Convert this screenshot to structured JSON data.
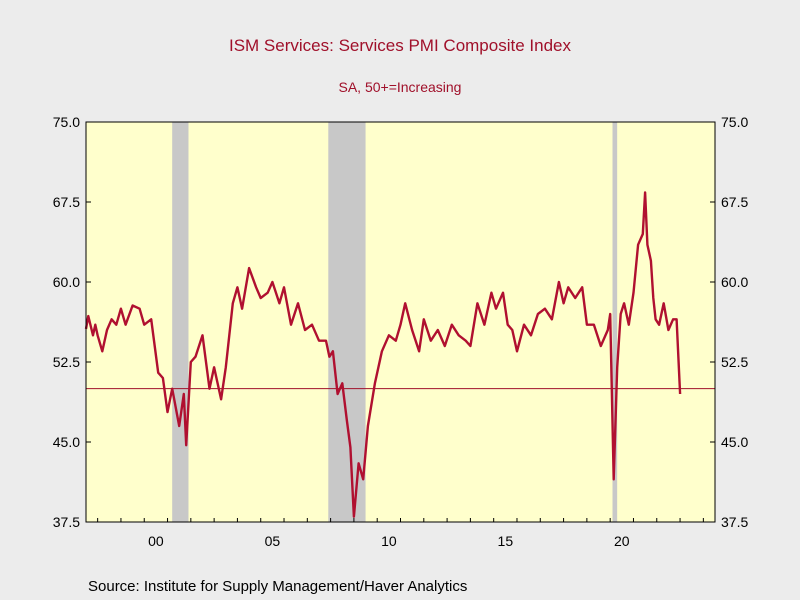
{
  "chart_data": {
    "type": "line",
    "title": "ISM Services: Services PMI Composite Index",
    "subtitle": "SA, 50+=Increasing",
    "source": "Source:  Institute for Supply Management/Haver Analytics",
    "xlabel": "",
    "ylabel": "",
    "xlim": [
      1997.5,
      2024.5
    ],
    "ylim": [
      37.5,
      75.0
    ],
    "yticks": [
      "37.5",
      "45.0",
      "52.5",
      "60.0",
      "67.5",
      "75.0"
    ],
    "xticks": [
      {
        "value": 2000.5,
        "label": "00"
      },
      {
        "value": 2005.5,
        "label": "05"
      },
      {
        "value": 2010.5,
        "label": "10"
      },
      {
        "value": 2015.5,
        "label": "15"
      },
      {
        "value": 2020.5,
        "label": "20"
      }
    ],
    "reference_line": 50.0,
    "recessions": [
      [
        2001.2,
        2001.9
      ],
      [
        2007.9,
        2009.5
      ],
      [
        2020.1,
        2020.3
      ]
    ],
    "colors": {
      "plot_bg": "#ffffcc",
      "series": "#b01030",
      "recession": "#c8c8c8",
      "page_bg": "#ececec",
      "title": "#a0102a"
    },
    "series": [
      {
        "x": [
          1997.5,
          1997.6,
          1997.8,
          1997.9,
          1998.0,
          1998.2,
          1998.4,
          1998.6,
          1998.8,
          1999.0,
          1999.2,
          1999.5,
          1999.8,
          2000.0,
          2000.3,
          2000.6,
          2000.8,
          2001.0,
          2001.2,
          2001.5,
          2001.7,
          2001.8,
          2002.0,
          2002.2,
          2002.5,
          2002.8,
          2003.0,
          2003.3,
          2003.5,
          2003.8,
          2004.0,
          2004.2,
          2004.5,
          2004.8,
          2005.0,
          2005.3,
          2005.5,
          2005.8,
          2006.0,
          2006.3,
          2006.6,
          2006.9,
          2007.2,
          2007.5,
          2007.8,
          2007.95,
          2008.1,
          2008.3,
          2008.5,
          2008.7,
          2008.85,
          2009.0,
          2009.2,
          2009.4,
          2009.6,
          2009.9,
          2010.2,
          2010.5,
          2010.8,
          2011.0,
          2011.2,
          2011.5,
          2011.8,
          2012.0,
          2012.3,
          2012.6,
          2012.9,
          2013.2,
          2013.5,
          2013.8,
          2014.0,
          2014.3,
          2014.6,
          2014.9,
          2015.1,
          2015.4,
          2015.6,
          2015.8,
          2016.0,
          2016.3,
          2016.6,
          2016.9,
          2017.2,
          2017.5,
          2017.8,
          2018.0,
          2018.2,
          2018.5,
          2018.8,
          2019.0,
          2019.3,
          2019.6,
          2019.9,
          2020.0,
          2020.15,
          2020.3,
          2020.45,
          2020.6,
          2020.8,
          2021.0,
          2021.2,
          2021.4,
          2021.5,
          2021.6,
          2021.75,
          2021.85,
          2021.95,
          2022.1,
          2022.3,
          2022.5,
          2022.7,
          2022.85,
          2023.0
        ],
        "values": [
          55.6,
          56.8,
          55.0,
          56.0,
          55.0,
          53.5,
          55.5,
          56.5,
          56.0,
          57.5,
          56.0,
          57.8,
          57.5,
          56.0,
          56.5,
          51.5,
          51.0,
          47.8,
          50.0,
          46.5,
          49.5,
          44.7,
          52.5,
          53.0,
          55.0,
          50.0,
          52.0,
          49.0,
          52.0,
          58.0,
          59.5,
          57.5,
          61.3,
          59.5,
          58.5,
          59.0,
          60.0,
          58.0,
          59.5,
          56.0,
          58.0,
          55.5,
          56.0,
          54.5,
          54.5,
          53.0,
          53.5,
          49.5,
          50.5,
          47.0,
          44.5,
          38.0,
          43.0,
          41.5,
          46.5,
          50.5,
          53.5,
          55.0,
          54.5,
          56.0,
          58.0,
          55.5,
          53.5,
          56.5,
          54.5,
          55.5,
          54.0,
          56.0,
          55.0,
          54.5,
          54.0,
          58.0,
          56.0,
          59.0,
          57.5,
          59.0,
          56.0,
          55.5,
          53.5,
          56.0,
          55.0,
          57.0,
          57.5,
          56.5,
          60.0,
          58.0,
          59.5,
          58.5,
          59.5,
          56.0,
          56.0,
          54.0,
          55.5,
          57.0,
          41.5,
          52.0,
          57.0,
          58.0,
          56.0,
          59.0,
          63.5,
          64.5,
          68.4,
          63.5,
          62.0,
          58.5,
          56.5,
          56.0,
          58.0,
          55.5,
          56.5,
          56.5,
          49.5
        ]
      }
    ]
  }
}
